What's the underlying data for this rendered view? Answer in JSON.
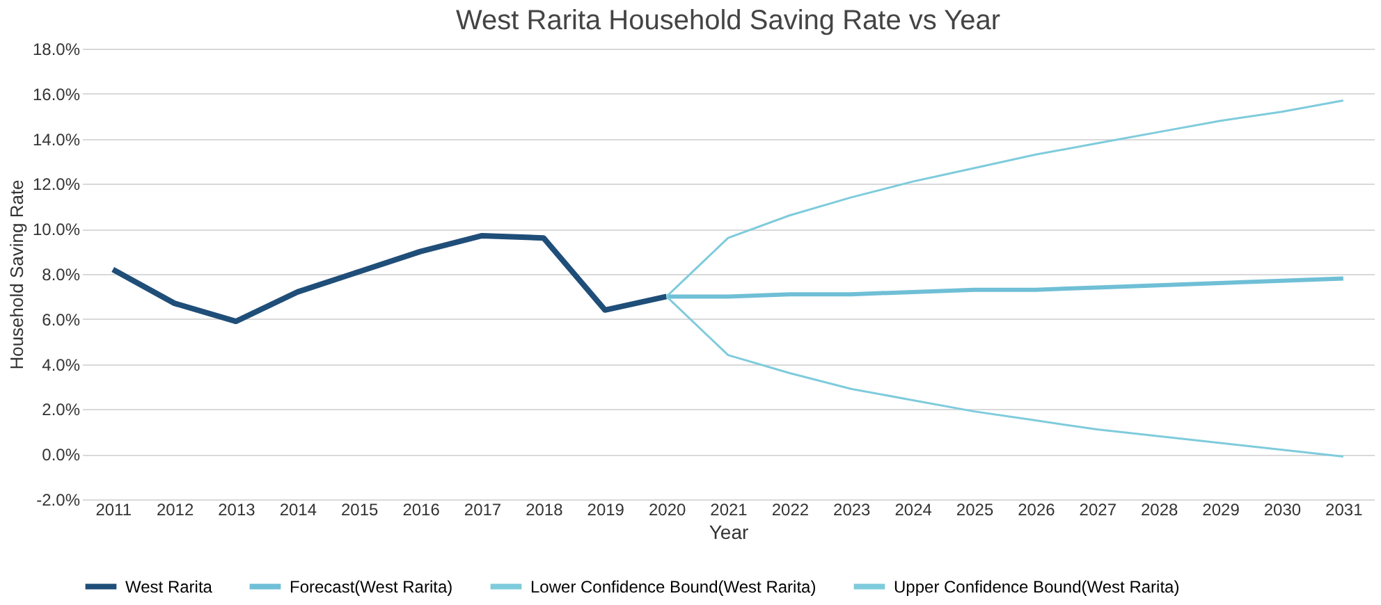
{
  "chart_data": {
    "type": "line",
    "title": "West Rarita Household Saving Rate vs Year",
    "xlabel": "Year",
    "ylabel": "Household Saving Rate",
    "categories": [
      "2011",
      "2012",
      "2013",
      "2014",
      "2015",
      "2016",
      "2017",
      "2018",
      "2019",
      "2020",
      "2021",
      "2022",
      "2023",
      "2024",
      "2025",
      "2026",
      "2027",
      "2028",
      "2029",
      "2030",
      "2031"
    ],
    "series": [
      {
        "name": "West Rarita",
        "color": "#1f4e79",
        "values": [
          8.2,
          6.7,
          5.9,
          7.2,
          8.1,
          9.0,
          9.7,
          9.6,
          6.4,
          7.0,
          null,
          null,
          null,
          null,
          null,
          null,
          null,
          null,
          null,
          null,
          null
        ]
      },
      {
        "name": "Forecast(West Rarita)",
        "color": "#6fbfd6",
        "values": [
          null,
          null,
          null,
          null,
          null,
          null,
          null,
          null,
          null,
          7.0,
          7.0,
          7.1,
          7.1,
          7.2,
          7.3,
          7.3,
          7.4,
          7.5,
          7.6,
          7.7,
          7.8
        ]
      },
      {
        "name": "Lower Confidence Bound(West Rarita)",
        "color": "#7ecbdc",
        "values": [
          null,
          null,
          null,
          null,
          null,
          null,
          null,
          null,
          null,
          7.0,
          4.4,
          3.6,
          2.9,
          2.4,
          1.9,
          1.5,
          1.1,
          0.8,
          0.5,
          0.2,
          -0.1
        ]
      },
      {
        "name": "Upper Confidence Bound(West Rarita)",
        "color": "#7ecbdc",
        "values": [
          null,
          null,
          null,
          null,
          null,
          null,
          null,
          null,
          null,
          7.0,
          9.6,
          10.6,
          11.4,
          12.1,
          12.7,
          13.3,
          13.8,
          14.3,
          14.8,
          15.2,
          15.7
        ]
      }
    ],
    "ylim": [
      -2,
      18
    ],
    "yticks": [
      {
        "value": -2,
        "label": "-2.0%"
      },
      {
        "value": 0,
        "label": "0.0%"
      },
      {
        "value": 2,
        "label": "2.0%"
      },
      {
        "value": 4,
        "label": "4.0%"
      },
      {
        "value": 6,
        "label": "6.0%"
      },
      {
        "value": 8,
        "label": "8.0%"
      },
      {
        "value": 10,
        "label": "10.0%"
      },
      {
        "value": 12,
        "label": "12.0%"
      },
      {
        "value": 14,
        "label": "14.0%"
      },
      {
        "value": 16,
        "label": "16.0%"
      },
      {
        "value": 18,
        "label": "18.0%"
      }
    ],
    "grid": "y",
    "legend": "bottom",
    "marker": "none",
    "line_style": "solid"
  }
}
